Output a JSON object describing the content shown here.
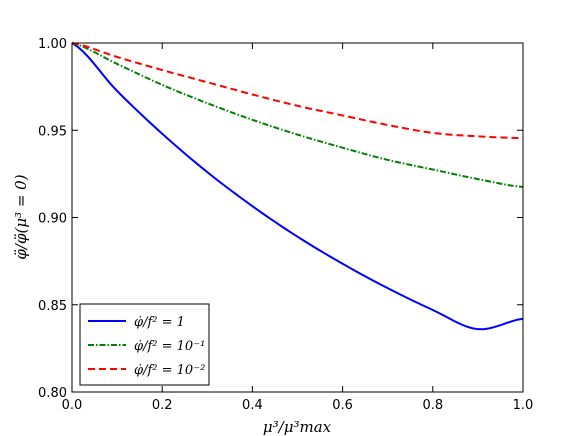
{
  "chart_data": {
    "type": "line",
    "xlabel": "μ³/μ³max",
    "ylabel": "φ̈/φ̈(μ³ = 0)",
    "xlim": [
      0.0,
      1.0
    ],
    "ylim": [
      0.8,
      1.0
    ],
    "xticks": [
      "0.0",
      "0.2",
      "0.4",
      "0.6",
      "0.8",
      "1.0"
    ],
    "yticks": [
      "0.80",
      "0.85",
      "0.90",
      "0.95",
      "1.00"
    ],
    "grid": false,
    "legend_position": "lower-left",
    "x": [
      0.0,
      0.1,
      0.2,
      0.3,
      0.4,
      0.5,
      0.6,
      0.7,
      0.8,
      0.9,
      1.0
    ],
    "series": [
      {
        "name": "φ̇/f² = 1",
        "color": "#0000ff",
        "style": "solid",
        "values": [
          1.0,
          0.9725,
          0.948,
          0.926,
          0.9065,
          0.889,
          0.8735,
          0.8595,
          0.847,
          0.836,
          0.842
        ]
      },
      {
        "name": "φ̇/f² = 10⁻¹",
        "color": "#008000",
        "style": "dashdot",
        "values": [
          1.0,
          0.988,
          0.976,
          0.9655,
          0.956,
          0.9475,
          0.94,
          0.933,
          0.9275,
          0.922,
          0.9175
        ]
      },
      {
        "name": "φ̇/f² = 10⁻²",
        "color": "#ff0000",
        "style": "dashed",
        "values": [
          1.0,
          0.992,
          0.9845,
          0.9775,
          0.9705,
          0.964,
          0.9585,
          0.953,
          0.9485,
          0.9465,
          0.9455
        ]
      }
    ]
  }
}
